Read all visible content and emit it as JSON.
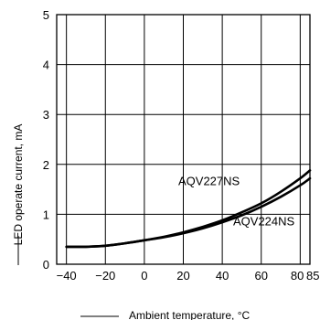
{
  "chart_data": {
    "type": "line",
    "title": "",
    "xlabel": "Ambient temperature, °C",
    "ylabel": "LED operate current, mA",
    "xlim": [
      -45,
      85
    ],
    "ylim": [
      0,
      5
    ],
    "grid": true,
    "x_ticks": [
      -40,
      -20,
      0,
      20,
      40,
      60,
      80,
      85
    ],
    "x_tick_labels": [
      "−40",
      "−20",
      "0",
      "20",
      "40",
      "60",
      "80",
      "85"
    ],
    "y_ticks": [
      0,
      1,
      2,
      3,
      4,
      5
    ],
    "y_tick_labels": [
      "0",
      "1",
      "2",
      "3",
      "4",
      "5"
    ],
    "series": [
      {
        "name": "AQV227NS",
        "x": [
          -40,
          -30,
          -20,
          -10,
          0,
          10,
          20,
          30,
          40,
          50,
          60,
          70,
          80,
          85
        ],
        "y": [
          0.35,
          0.35,
          0.37,
          0.42,
          0.48,
          0.55,
          0.64,
          0.75,
          0.88,
          1.04,
          1.22,
          1.45,
          1.72,
          1.88
        ]
      },
      {
        "name": "AQV224NS",
        "x": [
          -40,
          -30,
          -20,
          -10,
          0,
          10,
          20,
          30,
          40,
          50,
          60,
          70,
          80,
          85
        ],
        "y": [
          0.35,
          0.35,
          0.37,
          0.42,
          0.48,
          0.54,
          0.62,
          0.72,
          0.84,
          0.98,
          1.15,
          1.35,
          1.58,
          1.72
        ]
      }
    ]
  }
}
